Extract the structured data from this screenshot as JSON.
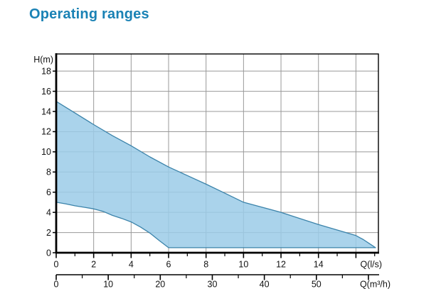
{
  "page": {
    "title": "Operating ranges",
    "title_color": "#1a82b5",
    "background": "#ffffff"
  },
  "chart_data": {
    "type": "area",
    "title": "Operating ranges",
    "grid": true,
    "grid_color": "#999999",
    "axis_color": "#000000",
    "text_color": "#111111",
    "plot": {
      "x_min": 0,
      "x_max": 17.2,
      "y_min": 0,
      "y_max": 19.7
    },
    "y_axis": {
      "unit_label": "H(m)",
      "ticks": [
        0,
        2,
        4,
        6,
        8,
        10,
        12,
        14,
        16,
        18
      ]
    },
    "x_axis_ls": {
      "unit_label": "Q(l/s)",
      "major_ticks": [
        0,
        2,
        4,
        6,
        8,
        10,
        12,
        14,
        16
      ],
      "labeled_ticks": [
        0,
        2,
        4,
        6,
        8,
        10,
        12,
        14
      ],
      "minor_ticks": [
        1,
        3,
        5,
        7,
        9,
        11,
        13,
        15,
        17
      ]
    },
    "x_axis_m3h": {
      "unit_label": "Q(m³/h)",
      "conversion_ls_to_m3h": 3.6,
      "major_ticks": [
        0,
        10,
        20,
        30,
        40,
        50,
        60
      ],
      "labeled_ticks": [
        0,
        10,
        20,
        30,
        40,
        50
      ],
      "minor_ticks": [
        5,
        15,
        25,
        35,
        45,
        55
      ]
    },
    "series": [
      {
        "name": "operating-range-envelope",
        "fill_color": "#9bcbe8",
        "fill_opacity": 0.85,
        "stroke_color": "#3b83aa",
        "upper_boundary_qh": [
          [
            0,
            15.0
          ],
          [
            1,
            13.85
          ],
          [
            2,
            12.7
          ],
          [
            3,
            11.6
          ],
          [
            4,
            10.6
          ],
          [
            5,
            9.5
          ],
          [
            6,
            8.5
          ],
          [
            7,
            7.65
          ],
          [
            8,
            6.8
          ],
          [
            9,
            5.9
          ],
          [
            10,
            5.0
          ],
          [
            11,
            4.5
          ],
          [
            12,
            4.0
          ],
          [
            13,
            3.4
          ],
          [
            14,
            2.8
          ],
          [
            15,
            2.25
          ],
          [
            16,
            1.7
          ],
          [
            16.4,
            1.3
          ],
          [
            16.8,
            0.8
          ],
          [
            17.05,
            0.5
          ]
        ],
        "lower_boundary_qh": [
          [
            0,
            5.0
          ],
          [
            0.5,
            4.85
          ],
          [
            1,
            4.65
          ],
          [
            1.5,
            4.5
          ],
          [
            2,
            4.35
          ],
          [
            2.5,
            4.1
          ],
          [
            3,
            3.7
          ],
          [
            3.5,
            3.4
          ],
          [
            4,
            3.05
          ],
          [
            4.5,
            2.55
          ],
          [
            5,
            1.95
          ],
          [
            5.5,
            1.2
          ],
          [
            6,
            0.5
          ],
          [
            17.05,
            0.5
          ]
        ]
      }
    ]
  }
}
